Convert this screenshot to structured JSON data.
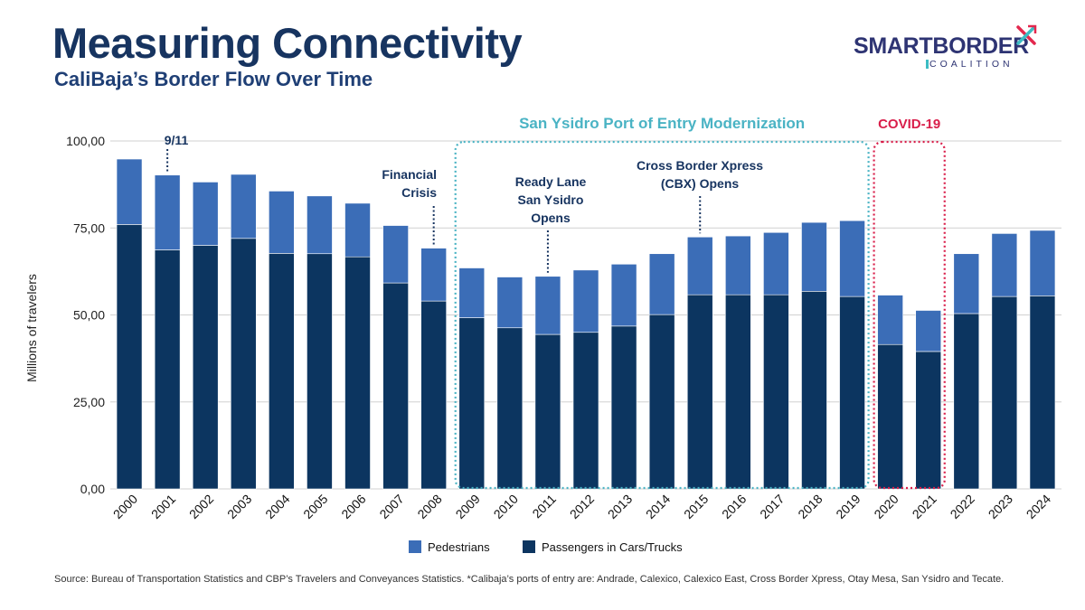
{
  "header": {
    "title": "Measuring Connectivity",
    "subtitle": "CaliBaja’s Border Flow Over Time"
  },
  "logo": {
    "name": "SMARTBORDER",
    "sub": "COALITION",
    "icon": "crossed-arrows-icon",
    "colors": {
      "navy": "#2e3473",
      "teal": "#3cbcc3",
      "red": "#e3284e"
    }
  },
  "chart_data": {
    "type": "bar",
    "stacked": true,
    "categories": [
      "2000",
      "2001",
      "2002",
      "2003",
      "2004",
      "2005",
      "2006",
      "2007",
      "2008",
      "2009",
      "2010",
      "2011",
      "2012",
      "2013",
      "2014",
      "2015",
      "2016",
      "2017",
      "2018",
      "2019",
      "2020",
      "2021",
      "2022",
      "2023",
      "2024"
    ],
    "series": [
      {
        "name": "Passengers in Cars/Trucks",
        "color": "#0c3560",
        "values": [
          76,
          68.7,
          70,
          72,
          67.7,
          67.6,
          66.7,
          59.2,
          54,
          49.2,
          46.3,
          44.4,
          45,
          46.8,
          50.1,
          55.8,
          55.8,
          55.8,
          56.8,
          55.3,
          41.5,
          39.5,
          50.4,
          55.3,
          55.5
        ]
      },
      {
        "name": "Pedestrians",
        "color": "#3b6db7",
        "values": [
          18.8,
          21.5,
          18.2,
          18.4,
          17.9,
          16.6,
          15.4,
          16.5,
          15.2,
          14.3,
          14.6,
          16.7,
          17.9,
          17.8,
          17.5,
          16.6,
          16.9,
          17.9,
          19.8,
          21.8,
          14.2,
          11.8,
          17.2,
          18.1,
          18.8
        ]
      }
    ],
    "ylabel": "Millions of travelers",
    "ylim": [
      0,
      100
    ],
    "yticks": [
      0,
      25,
      50,
      75,
      100
    ],
    "ytick_labels": [
      "0,00",
      "25,00",
      "50,00",
      "75,00",
      "100,00"
    ],
    "grid": true,
    "legend": "bottom",
    "legend_entries": [
      "Pedestrians",
      "Passengers in Cars/Trucks"
    ],
    "annotations": [
      {
        "text": "9/11",
        "year": "2001",
        "color": "#173460"
      },
      {
        "text": "Financial\nCrisis",
        "year": "2008",
        "color": "#173460"
      },
      {
        "text": "Ready Lane\nSan Ysidro\nOpens",
        "year": "2011",
        "color": "#173460"
      },
      {
        "text": "Cross Border Xpress\n(CBX) Opens",
        "year": "2015",
        "color": "#173460"
      }
    ],
    "highlight_regions": [
      {
        "label": "San Ysidro Port of Entry Modernization",
        "from": "2009",
        "to": "2019",
        "color": "#4ab3c4"
      },
      {
        "label": "COVID-19",
        "from": "2020",
        "to": "2021",
        "color": "#d91e4a"
      }
    ]
  },
  "source": "Source: Bureau of Transportation Statistics and CBP’s Travelers and Conveyances Statistics. *Calibaja’s ports of entry are: Andrade, Calexico, Calexico East, Cross Border Xpress, Otay Mesa, San Ysidro and Tecate."
}
